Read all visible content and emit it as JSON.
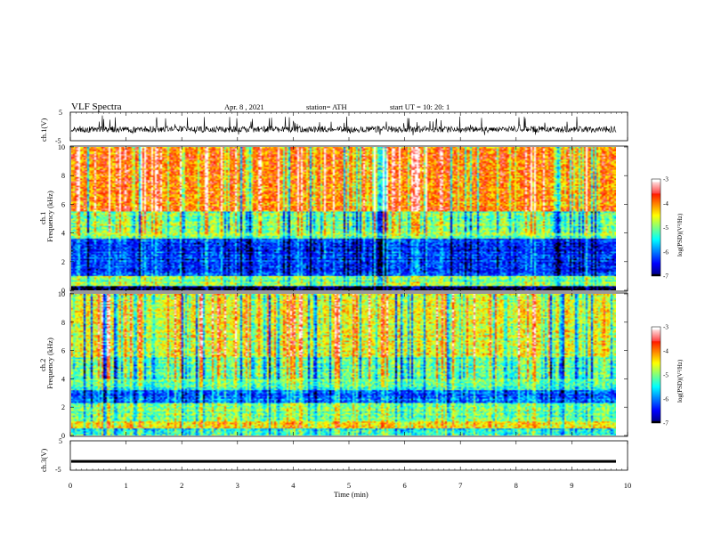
{
  "header": {
    "title": "VLF Spectra",
    "date": "Apr. 8 , 2021",
    "station": "station= ATH",
    "start": "start UT = 10: 20: 1"
  },
  "chart_data": [
    {
      "type": "line",
      "id": "ch1-waveform",
      "ylabel": "ch.1(V)",
      "ylim": [
        -5,
        5
      ],
      "yticks": [
        "5",
        "-5"
      ],
      "xlim": [
        0,
        10
      ],
      "baseline": -1,
      "style": "noisy"
    },
    {
      "type": "heatmap",
      "id": "ch1-spectrogram",
      "ylabel_channel": "ch.1",
      "ylabel": "Frequency (kHz)",
      "ylim": [
        0,
        10
      ],
      "yticks": [
        "0",
        "2",
        "4",
        "6",
        "8",
        "10"
      ],
      "xlim": [
        0,
        9.8
      ],
      "colorbar": {
        "label": "log(PSD)(V²/Hz)",
        "range": [
          -7,
          -3
        ],
        "ticks": [
          "-3",
          "-4",
          "-5",
          "-6",
          "-7"
        ]
      },
      "bands_khz": [
        {
          "from": 0,
          "to": 0.3,
          "level": -7
        },
        {
          "from": 0.3,
          "to": 1.0,
          "level": -5
        },
        {
          "from": 1.0,
          "to": 3.6,
          "level": -6.3
        },
        {
          "from": 3.6,
          "to": 5.5,
          "level": -5.0
        },
        {
          "from": 5.5,
          "to": 10,
          "level": -4.0
        }
      ]
    },
    {
      "type": "heatmap",
      "id": "ch2-spectrogram",
      "ylabel_channel": "ch.2",
      "ylabel": "Frequency (kHz)",
      "ylim": [
        0,
        10
      ],
      "yticks": [
        "0",
        "2",
        "4",
        "6",
        "8",
        "10"
      ],
      "xlim": [
        0,
        9.8
      ],
      "colorbar": {
        "label": "log(PSD)(V²/Hz)",
        "range": [
          -7,
          -3
        ],
        "ticks": [
          "-3",
          "-4",
          "-5",
          "-6",
          "-7"
        ]
      },
      "bands_khz": [
        {
          "from": 0,
          "to": 0.5,
          "level": -5.5
        },
        {
          "from": 0.5,
          "to": 1.0,
          "level": -4.3
        },
        {
          "from": 1.0,
          "to": 2.3,
          "level": -5.0
        },
        {
          "from": 2.3,
          "to": 3.2,
          "level": -6.0
        },
        {
          "from": 3.2,
          "to": 5.5,
          "level": -5.2
        },
        {
          "from": 5.5,
          "to": 10,
          "level": -4.6
        }
      ]
    },
    {
      "type": "line",
      "id": "ch3-waveform",
      "ylabel": "ch.3(V)",
      "ylim": [
        -5,
        5
      ],
      "yticks": [
        "5",
        "-5"
      ],
      "xlim": [
        0,
        10
      ],
      "xlabel": "Time (min)",
      "xticks": [
        "0",
        "1",
        "2",
        "3",
        "4",
        "5",
        "6",
        "7",
        "8",
        "9",
        "10"
      ],
      "baseline": -2,
      "style": "flat"
    }
  ]
}
